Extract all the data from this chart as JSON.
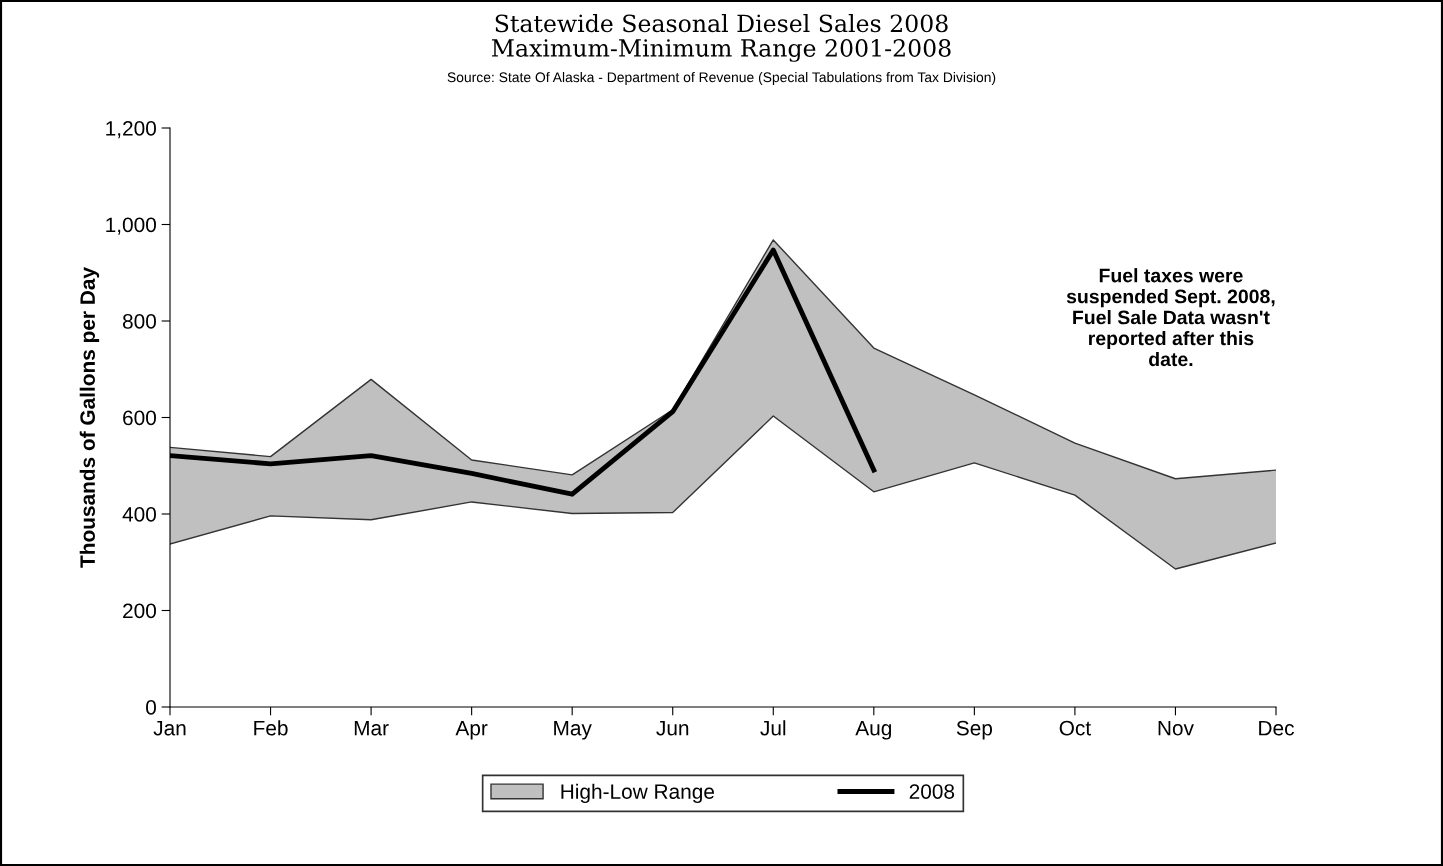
{
  "chart_data": {
    "type": "line",
    "title": "Statewide Seasonal Diesel Sales 2008\nMaximum-Minimum Range 2001-2008",
    "subtitle": "Source: State Of Alaska - Department of Revenue (Special Tabulations from Tax Division)",
    "ylabel": "Thousands of Gallons per Day",
    "categories": [
      "Jan",
      "Feb",
      "Mar",
      "Apr",
      "May",
      "Jun",
      "Jul",
      "Aug",
      "Sep",
      "Oct",
      "Nov",
      "Dec"
    ],
    "series": [
      {
        "type": "area",
        "color": "#ffffff",
        "values": [
          338,
          396,
          388,
          425,
          401,
          403,
          603,
          446,
          506,
          439,
          286,
          340
        ]
      },
      {
        "name": "High-Low Range",
        "type": "area",
        "color": "#c0c0c0",
        "values": [
          200,
          123,
          291,
          87,
          80,
          213,
          365,
          298,
          141,
          108,
          187,
          151
        ]
      },
      {
        "name": "2008",
        "type": "line",
        "color": "#000000",
        "values": [
          521,
          504,
          521,
          484,
          441,
          612,
          947,
          491,
          null,
          null,
          null,
          null
        ]
      }
    ],
    "ylim": [
      0,
      1200
    ],
    "yticks": [
      0,
      200,
      400,
      600,
      800,
      {
        "value": 1000,
        "label": "1,000"
      },
      {
        "value": 1200,
        "label": "1,200"
      }
    ],
    "annotations": [
      "Fuel taxes were\nsuspended Sept. 2008,\nFuel Sale Data wasn't\nreported after this\ndate."
    ],
    "legend": "bottom",
    "stacked": true,
    "grid": false,
    "marker": "none",
    "line_style": "solid"
  }
}
